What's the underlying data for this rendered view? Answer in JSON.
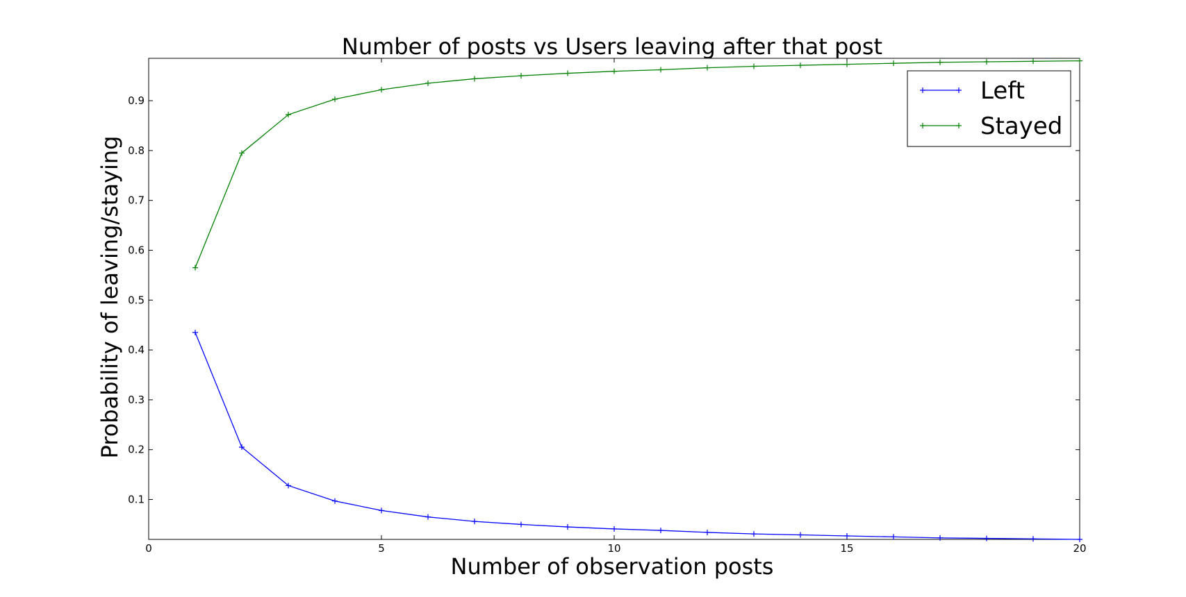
{
  "chart_data": {
    "type": "line",
    "title": "Number of posts vs Users leaving after that post",
    "xlabel": "Number of observation posts",
    "ylabel": "Probability of leaving/staying",
    "xlim": [
      0,
      20
    ],
    "ylim": [
      0.02,
      0.985
    ],
    "xticks": [
      0,
      5,
      10,
      15,
      20
    ],
    "xtick_labels": [
      "0",
      "5",
      "10",
      "15",
      "20"
    ],
    "yticks": [
      0.1,
      0.2,
      0.3,
      0.4,
      0.5,
      0.6,
      0.7,
      0.8,
      0.9
    ],
    "ytick_labels": [
      "0.1",
      "0.2",
      "0.3",
      "0.4",
      "0.5",
      "0.6",
      "0.7",
      "0.8",
      "0.9"
    ],
    "grid": false,
    "legend_position": "top-right",
    "x": [
      1,
      2,
      3,
      4,
      5,
      6,
      7,
      8,
      9,
      10,
      11,
      12,
      13,
      14,
      15,
      16,
      17,
      18,
      19,
      20
    ],
    "series": [
      {
        "name": "Left",
        "color": "#0000ff",
        "marker": "+",
        "values": [
          0.435,
          0.205,
          0.128,
          0.097,
          0.078,
          0.065,
          0.056,
          0.05,
          0.045,
          0.041,
          0.038,
          0.034,
          0.031,
          0.029,
          0.027,
          0.025,
          0.023,
          0.022,
          0.021,
          0.02
        ]
      },
      {
        "name": "Stayed",
        "color": "#008000",
        "marker": "+",
        "values": [
          0.565,
          0.795,
          0.872,
          0.903,
          0.922,
          0.935,
          0.944,
          0.95,
          0.955,
          0.959,
          0.962,
          0.966,
          0.969,
          0.971,
          0.973,
          0.975,
          0.977,
          0.978,
          0.979,
          0.98
        ]
      }
    ]
  }
}
